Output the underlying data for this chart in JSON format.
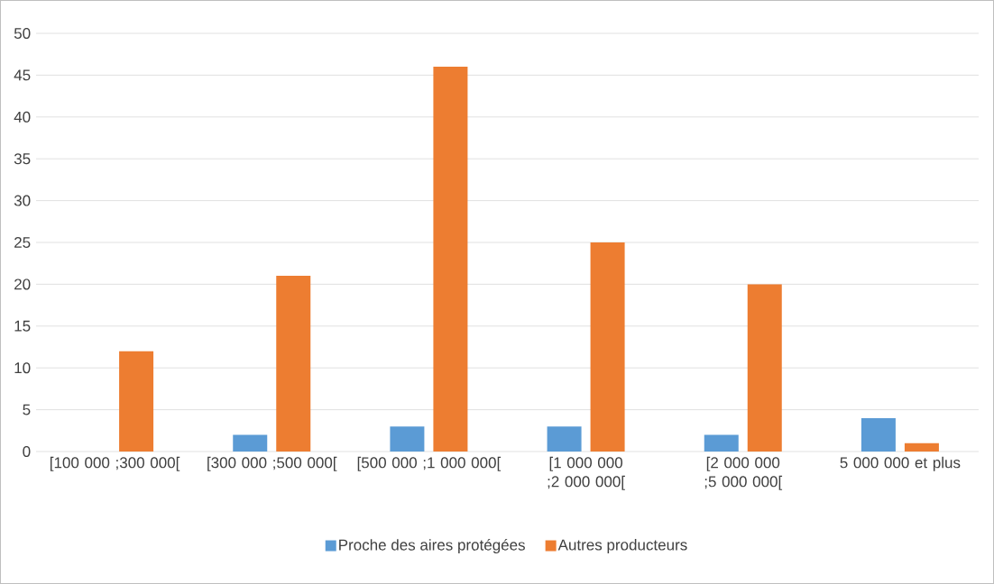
{
  "chart_data": {
    "type": "bar",
    "categories": [
      "[100 000 ;300 000[",
      "[300 000 ;500 000[",
      "[500 000 ;1 000 000[",
      "[1 000 000 ;2 000 000[",
      "[2 000 000 ;5 000 000[",
      "5 000 000 et plus"
    ],
    "series": [
      {
        "name": "Proche des aires protégées",
        "color": "#5b9bd5",
        "values": [
          0,
          2,
          3,
          3,
          2,
          4
        ]
      },
      {
        "name": "Autres producteurs",
        "color": "#ed7d31",
        "values": [
          12,
          21,
          46,
          25,
          20,
          1
        ]
      }
    ],
    "ylim": [
      0,
      50
    ],
    "yticks": [
      0,
      5,
      10,
      15,
      20,
      25,
      30,
      35,
      40,
      45,
      50
    ],
    "grid": "y",
    "legend": "bottom"
  }
}
